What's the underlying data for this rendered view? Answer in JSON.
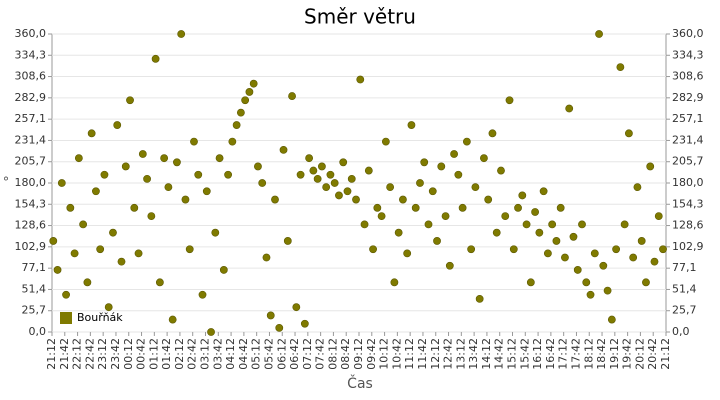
{
  "chart_data": {
    "type": "scatter",
    "title": "Směr větru",
    "x_label": "Čas",
    "y_label": "°",
    "x": [
      "21:15",
      "21:25",
      "21:35",
      "21:45",
      "21:55",
      "22:05",
      "22:15",
      "22:25",
      "22:35",
      "22:45",
      "22:55",
      "23:05",
      "23:15",
      "23:25",
      "23:35",
      "23:45",
      "23:55",
      "00:05",
      "00:15",
      "00:25",
      "00:35",
      "00:45",
      "00:55",
      "01:05",
      "01:15",
      "01:25",
      "01:35",
      "01:45",
      "01:55",
      "02:05",
      "02:15",
      "02:25",
      "02:35",
      "02:45",
      "02:55",
      "03:05",
      "03:15",
      "03:25",
      "03:35",
      "03:45",
      "03:55",
      "04:05",
      "04:15",
      "04:25",
      "04:35",
      "04:45",
      "04:55",
      "05:05",
      "05:15",
      "05:25",
      "05:35",
      "05:45",
      "05:55",
      "06:05",
      "06:15",
      "06:25",
      "06:35",
      "06:45",
      "06:55",
      "07:05",
      "07:15",
      "07:25",
      "07:35",
      "07:45",
      "07:55",
      "08:05",
      "08:15",
      "08:25",
      "08:35",
      "08:45",
      "08:55",
      "09:05",
      "09:15",
      "09:25",
      "09:35",
      "09:45",
      "09:55",
      "10:05",
      "10:15",
      "10:25",
      "10:35",
      "10:45",
      "10:55",
      "11:05",
      "11:15",
      "11:25",
      "11:35",
      "11:45",
      "11:55",
      "12:05",
      "12:15",
      "12:25",
      "12:35",
      "12:45",
      "12:55",
      "13:05",
      "13:15",
      "13:25",
      "13:35",
      "13:45",
      "13:55",
      "14:05",
      "14:15",
      "14:25",
      "14:35",
      "14:45",
      "14:55",
      "15:05",
      "15:15",
      "15:25",
      "15:35",
      "15:45",
      "15:55",
      "16:05",
      "16:15",
      "16:25",
      "16:35",
      "16:45",
      "16:55",
      "17:05",
      "17:15",
      "17:25",
      "17:35",
      "17:45",
      "17:55",
      "18:05",
      "18:15",
      "18:25",
      "18:35",
      "18:45",
      "18:55",
      "19:05",
      "19:15",
      "19:25",
      "19:35",
      "19:45",
      "19:55",
      "20:05",
      "20:15",
      "20:25",
      "20:35",
      "20:45",
      "20:55",
      "21:05"
    ],
    "series": [
      {
        "name": "Bouřňák",
        "color": "#7f7a00",
        "values": [
          110,
          75,
          180,
          45,
          150,
          95,
          210,
          130,
          60,
          240,
          170,
          100,
          190,
          30,
          120,
          250,
          85,
          200,
          280,
          150,
          95,
          215,
          185,
          140,
          330,
          60,
          210,
          175,
          15,
          205,
          360,
          160,
          100,
          230,
          190,
          45,
          170,
          0,
          120,
          210,
          75,
          190,
          230,
          250,
          265,
          280,
          290,
          300,
          200,
          180,
          90,
          20,
          160,
          5,
          220,
          110,
          285,
          30,
          190,
          10,
          210,
          195,
          185,
          200,
          175,
          190,
          180,
          165,
          205,
          170,
          185,
          160,
          305,
          130,
          195,
          100,
          150,
          140,
          230,
          175,
          60,
          120,
          160,
          95,
          250,
          150,
          180,
          205,
          130,
          170,
          110,
          200,
          140,
          80,
          215,
          190,
          150,
          230,
          100,
          175,
          40,
          210,
          160,
          240,
          120,
          195,
          140,
          280,
          100,
          150,
          165,
          130,
          60,
          145,
          120,
          170,
          95,
          130,
          110,
          150,
          90,
          270,
          115,
          75,
          130,
          60,
          45,
          95,
          360,
          80,
          50,
          15,
          100,
          320,
          130,
          240,
          90,
          175,
          110,
          60,
          200,
          85,
          140,
          100
        ]
      }
    ],
    "xlim": [
      "21:12",
      "21:12"
    ],
    "xticks": [
      "21:12",
      "21:42",
      "22:12",
      "22:42",
      "23:12",
      "23:42",
      "00:12",
      "00:42",
      "01:12",
      "01:42",
      "02:12",
      "02:42",
      "03:12",
      "03:42",
      "04:12",
      "04:42",
      "05:12",
      "05:42",
      "06:12",
      "06:42",
      "07:12",
      "07:42",
      "08:12",
      "08:42",
      "09:12",
      "09:42",
      "10:12",
      "10:42",
      "11:12",
      "11:42",
      "12:12",
      "12:42",
      "13:12",
      "13:42",
      "14:12",
      "14:42",
      "15:12",
      "15:42",
      "16:12",
      "16:42",
      "17:12",
      "17:42",
      "18:12",
      "18:42",
      "19:12",
      "19:42",
      "20:12",
      "20:42",
      "21:12"
    ],
    "ylim": [
      0,
      360
    ],
    "yticks": [
      {
        "value": 0,
        "label": "0,0"
      },
      {
        "value": 25.7,
        "label": "25,7"
      },
      {
        "value": 51.4,
        "label": "51,4"
      },
      {
        "value": 77.1,
        "label": "77,1"
      },
      {
        "value": 102.9,
        "label": "102,9"
      },
      {
        "value": 128.6,
        "label": "128,6"
      },
      {
        "value": 154.3,
        "label": "154,3"
      },
      {
        "value": 180,
        "label": "180,0"
      },
      {
        "value": 205.7,
        "label": "205,7"
      },
      {
        "value": 231.4,
        "label": "231,4"
      },
      {
        "value": 257.1,
        "label": "257,1"
      },
      {
        "value": 282.9,
        "label": "282,9"
      },
      {
        "value": 308.6,
        "label": "308,6"
      },
      {
        "value": 334.3,
        "label": "334,3"
      },
      {
        "value": 360,
        "label": "360,0"
      }
    ],
    "grid": true,
    "legend": "lower left"
  }
}
